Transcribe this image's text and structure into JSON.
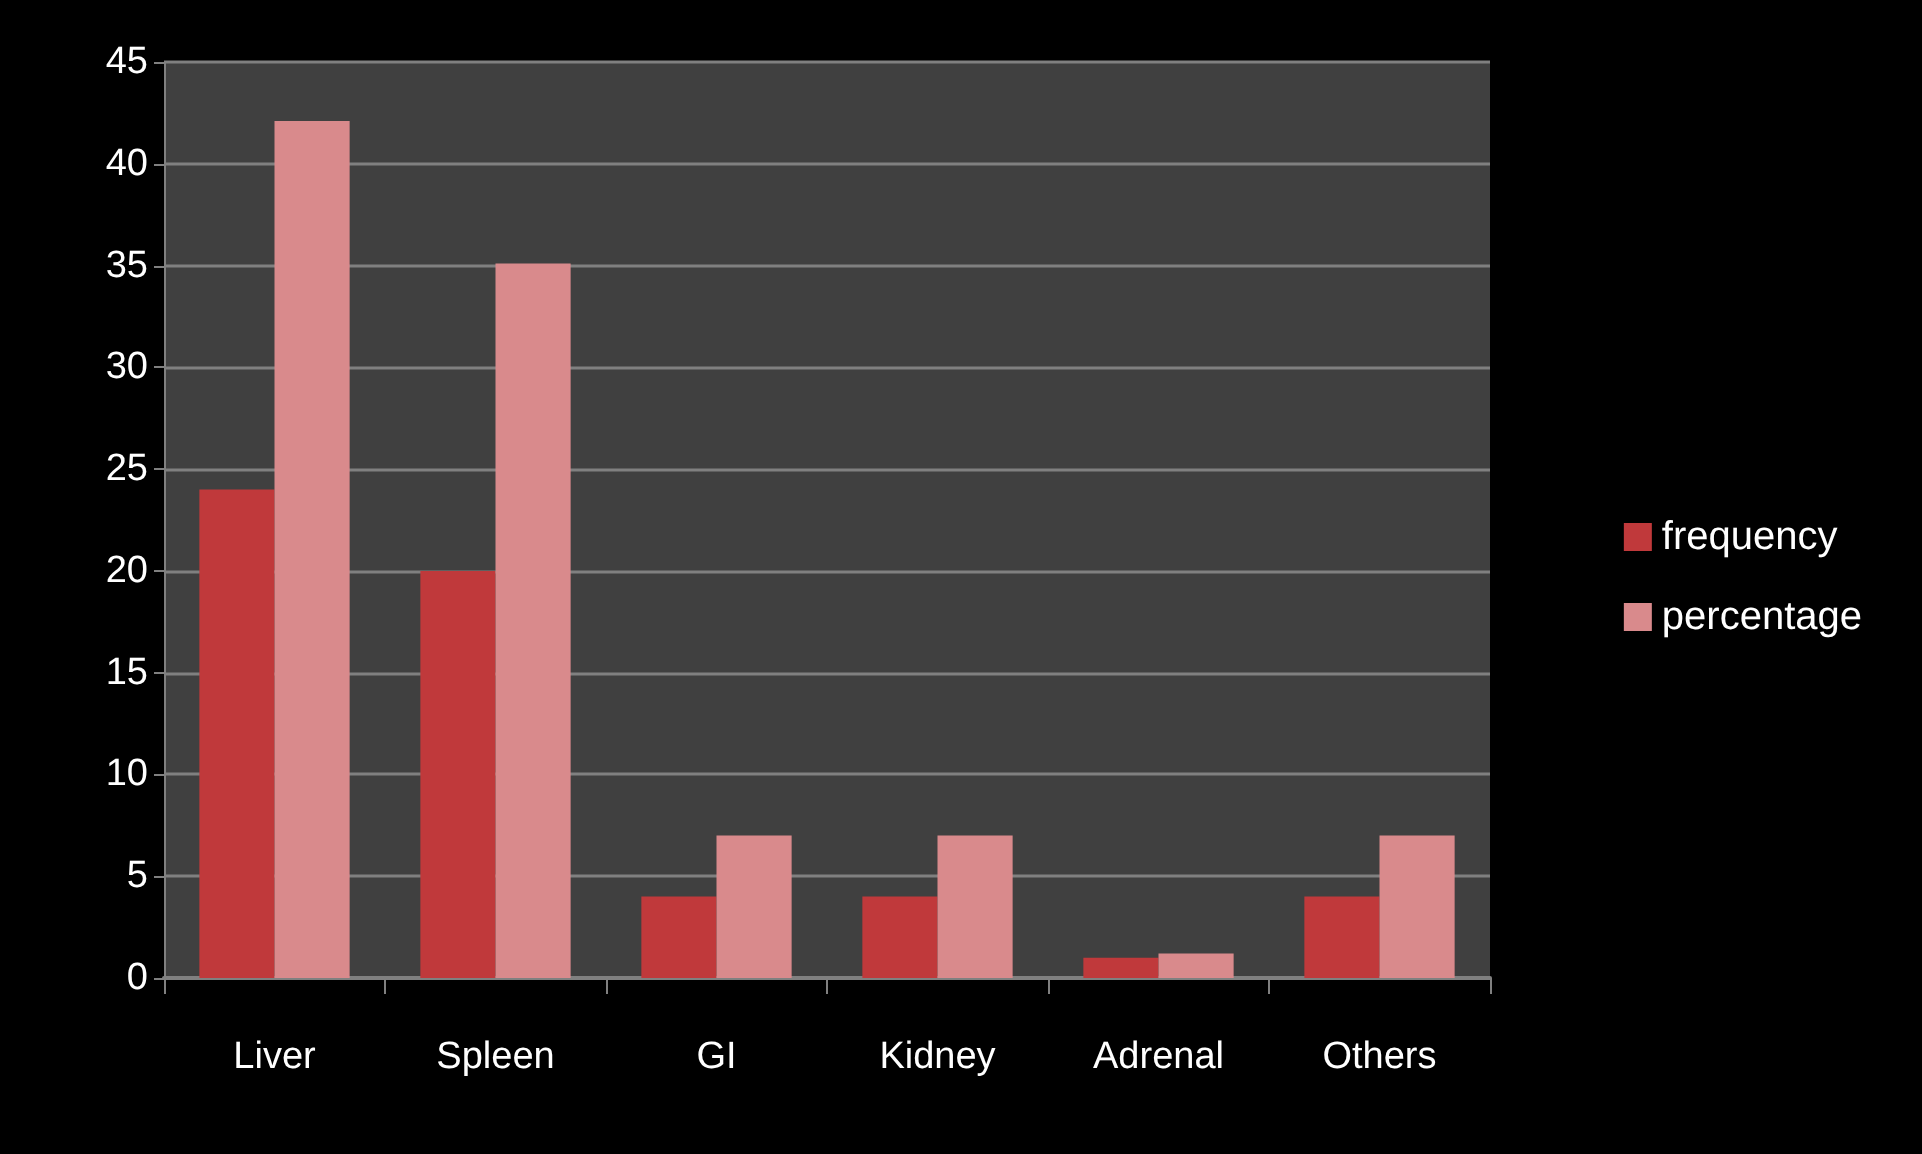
{
  "chart_data": {
    "type": "bar",
    "categories": [
      "Liver",
      "Spleen",
      "GI",
      "Kidney",
      "Adrenal",
      "Others"
    ],
    "series": [
      {
        "name": "frequency",
        "color": "#c0393b",
        "values": [
          24,
          20,
          4,
          4,
          1,
          4
        ]
      },
      {
        "name": "percentage",
        "color": "#d98a8c",
        "values": [
          42.1,
          35.1,
          7.0,
          7.0,
          1.2,
          7.0
        ]
      }
    ],
    "ylim": [
      0,
      45
    ],
    "yticks": [
      0,
      5,
      10,
      15,
      20,
      25,
      30,
      35,
      40,
      45
    ],
    "grid": "y",
    "legend": "right"
  }
}
